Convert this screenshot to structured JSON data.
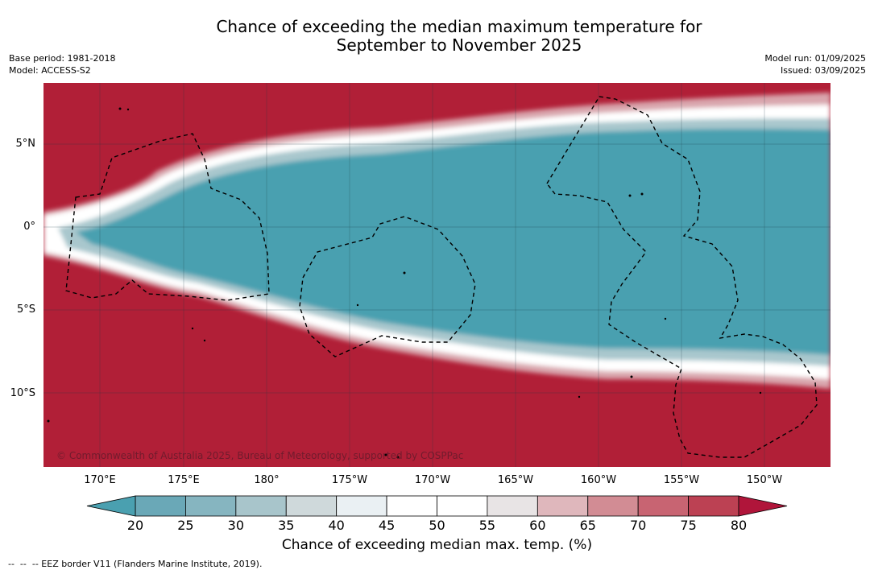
{
  "title": {
    "line1": "Chance of exceeding the median maximum temperature for",
    "line2": "September to November 2025"
  },
  "meta_left": {
    "base_period": "Base period: 1981-2018",
    "model": "Model: ACCESS-S2"
  },
  "meta_right": {
    "model_run": "Model run: 01/09/2025",
    "issued": "Issued: 03/09/2025"
  },
  "map": {
    "lat_labels": [
      "5°N",
      "0°",
      "5°S",
      "10°S"
    ],
    "lon_labels": [
      "170°E",
      "175°E",
      "180°",
      "175°W",
      "170°W",
      "165°W",
      "160°W",
      "155°W",
      "150°W"
    ],
    "copyright": "© Commonwealth of Australia 2025, Bureau of Meteorology, supported by COSPPac",
    "colors": {
      "below": "#4aa0b0",
      "above": "#b11f37",
      "neutral": "#ffffff",
      "eez_line": "#000000"
    }
  },
  "colorbar": {
    "ticks": [
      "20",
      "25",
      "30",
      "35",
      "40",
      "45",
      "50",
      "55",
      "60",
      "65",
      "70",
      "75",
      "80"
    ],
    "colors": [
      "#6aa8b7",
      "#86b5c0",
      "#a8c5cb",
      "#cfd9db",
      "#eaf0f3",
      "#ffffff",
      "#ffffff",
      "#e8e4e5",
      "#dfb7bc",
      "#d28c94",
      "#c86472",
      "#bc4153"
    ],
    "extend_low_color": "#4aa0b0",
    "extend_high_color": "#b0153a",
    "label": "Chance of exceeding median max. temp. (%)"
  },
  "eez_legend": "--  --  -- EEZ border V11 (Flanders Marine Institute, 2019)."
}
